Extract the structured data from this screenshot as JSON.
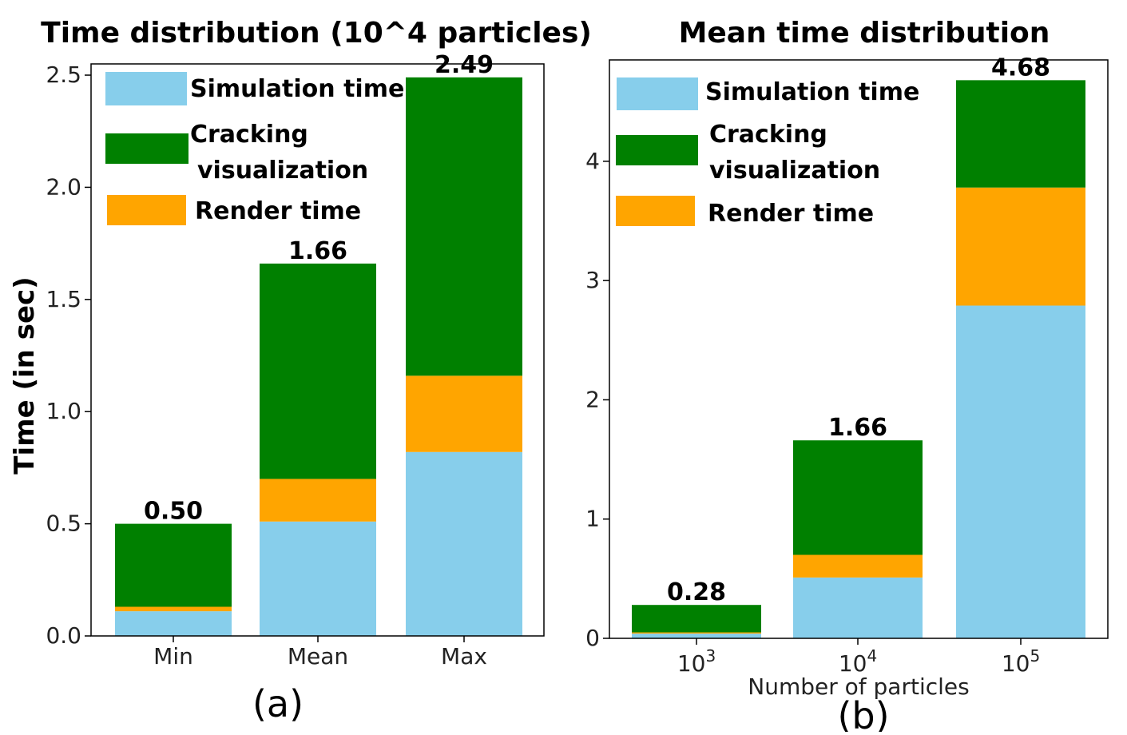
{
  "colors": {
    "simulation": "#87ceeb",
    "cracking": "#008000",
    "render": "#ffa500"
  },
  "chart_data": [
    {
      "type": "bar",
      "stacked": true,
      "title": "Time distribution (10^4 particles)",
      "xlabel": "",
      "ylabel": "Time (in sec)",
      "ylim": [
        0,
        2.55
      ],
      "yticks": [
        "0.0",
        "0.5",
        "1.0",
        "1.5",
        "2.0",
        "2.5"
      ],
      "categories": [
        "Min",
        "Mean",
        "Max"
      ],
      "totals": [
        "0.50",
        "1.66",
        "2.49"
      ],
      "legend": [
        "Simulation time",
        "Cracking",
        "visualization",
        "Render time"
      ],
      "legend_position": "top-left",
      "series": [
        {
          "name": "Simulation time",
          "values": [
            0.11,
            0.51,
            0.82
          ]
        },
        {
          "name": "Render time",
          "values": [
            0.02,
            0.19,
            0.34
          ]
        },
        {
          "name": "Cracking visualization",
          "values": [
            0.37,
            0.96,
            1.33
          ]
        }
      ],
      "panel_label": "(a)"
    },
    {
      "type": "bar",
      "stacked": true,
      "title": "Mean time distribution",
      "xlabel": "Number of particles",
      "ylabel": "",
      "ylim": [
        0,
        4.85
      ],
      "yticks": [
        "0",
        "1",
        "2",
        "3",
        "4"
      ],
      "categories": [
        {
          "base": "10",
          "exp": "3"
        },
        {
          "base": "10",
          "exp": "4"
        },
        {
          "base": "10",
          "exp": "5"
        }
      ],
      "totals": [
        "0.28",
        "1.66",
        "4.68"
      ],
      "legend": [
        "Simulation time",
        "Cracking",
        "visualization",
        "Render time"
      ],
      "legend_position": "top-left",
      "series": [
        {
          "name": "Simulation time",
          "values": [
            0.04,
            0.51,
            2.79
          ]
        },
        {
          "name": "Render time",
          "values": [
            0.01,
            0.19,
            0.99
          ]
        },
        {
          "name": "Cracking visualization",
          "values": [
            0.23,
            0.96,
            0.9
          ]
        }
      ],
      "panel_label": "(b)"
    }
  ]
}
